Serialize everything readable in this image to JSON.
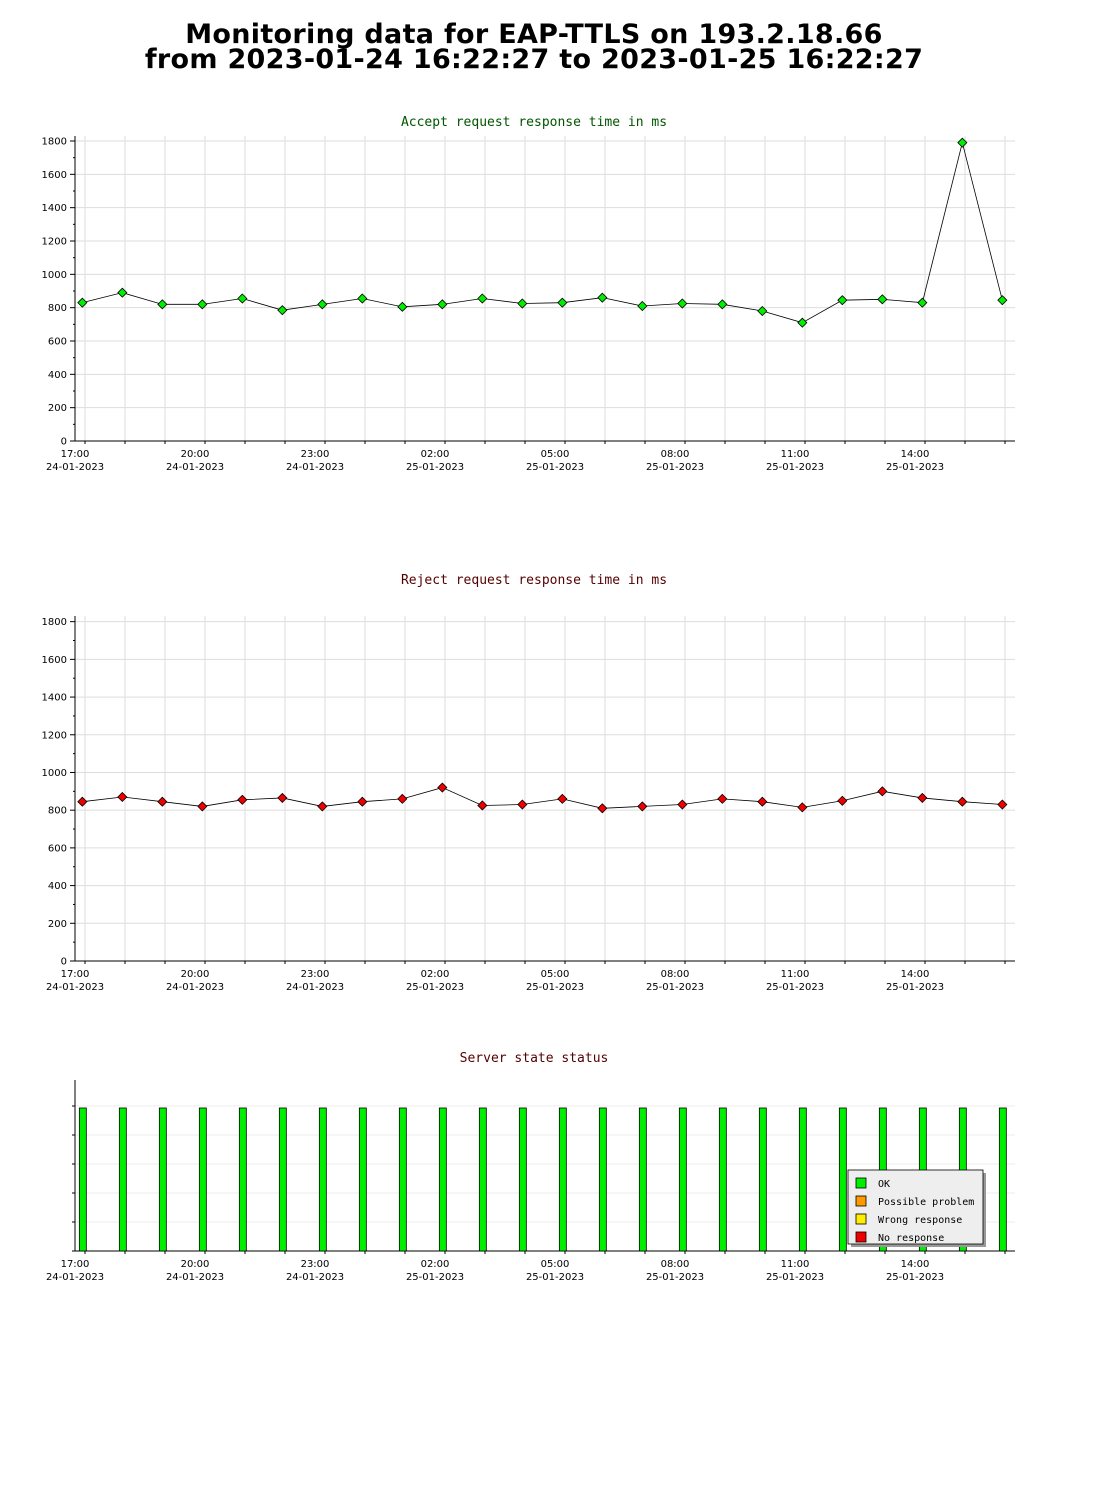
{
  "page": {
    "title_line1": "Monitoring data for EAP-TTLS on 193.2.18.66",
    "title_line2": "from 2023-01-24 16:22:27 to 2023-01-25 16:22:27"
  },
  "chart_data": [
    {
      "type": "line",
      "title": "Accept request response time in ms",
      "title_color": "#005500",
      "xlabel": "",
      "ylabel": "",
      "ylim": [
        0,
        1830
      ],
      "yticks": [
        0,
        200,
        400,
        600,
        800,
        1000,
        1200,
        1400,
        1600,
        1800
      ],
      "x_ticks": [
        {
          "time": "17:00",
          "date": "24-01-2023"
        },
        {
          "time": "20:00",
          "date": "24-01-2023"
        },
        {
          "time": "23:00",
          "date": "24-01-2023"
        },
        {
          "time": "02:00",
          "date": "25-01-2023"
        },
        {
          "time": "05:00",
          "date": "25-01-2023"
        },
        {
          "time": "08:00",
          "date": "25-01-2023"
        },
        {
          "time": "11:00",
          "date": "25-01-2023"
        },
        {
          "time": "14:00",
          "date": "25-01-2023"
        }
      ],
      "grid": true,
      "series": [
        {
          "color": "#00ee00",
          "x": [
            "2023-01-24 16:56",
            "2023-01-24 17:56",
            "2023-01-24 18:56",
            "2023-01-24 19:56",
            "2023-01-24 20:56",
            "2023-01-24 21:56",
            "2023-01-24 22:56",
            "2023-01-24 23:56",
            "2023-01-25 00:56",
            "2023-01-25 01:56",
            "2023-01-25 02:56",
            "2023-01-25 03:56",
            "2023-01-25 04:56",
            "2023-01-25 05:56",
            "2023-01-25 06:56",
            "2023-01-25 07:56",
            "2023-01-25 08:56",
            "2023-01-25 09:56",
            "2023-01-25 10:56",
            "2023-01-25 11:56",
            "2023-01-25 12:56",
            "2023-01-25 13:56",
            "2023-01-25 14:56",
            "2023-01-25 15:56"
          ],
          "values": [
            830,
            890,
            820,
            820,
            855,
            785,
            820,
            855,
            805,
            820,
            855,
            825,
            830,
            860,
            810,
            825,
            820,
            780,
            710,
            845,
            850,
            830,
            1790,
            845
          ]
        }
      ]
    },
    {
      "type": "line",
      "title": "Reject request response time in ms",
      "title_color": "#550000",
      "xlabel": "",
      "ylabel": "",
      "ylim": [
        0,
        1830
      ],
      "yticks": [
        0,
        200,
        400,
        600,
        800,
        1000,
        1200,
        1400,
        1600,
        1800
      ],
      "x_ticks": [
        {
          "time": "17:00",
          "date": "24-01-2023"
        },
        {
          "time": "20:00",
          "date": "24-01-2023"
        },
        {
          "time": "23:00",
          "date": "24-01-2023"
        },
        {
          "time": "02:00",
          "date": "25-01-2023"
        },
        {
          "time": "05:00",
          "date": "25-01-2023"
        },
        {
          "time": "08:00",
          "date": "25-01-2023"
        },
        {
          "time": "11:00",
          "date": "25-01-2023"
        },
        {
          "time": "14:00",
          "date": "25-01-2023"
        }
      ],
      "grid": true,
      "series": [
        {
          "color": "#ee0000",
          "x": [
            "2023-01-24 16:56",
            "2023-01-24 17:56",
            "2023-01-24 18:56",
            "2023-01-24 19:56",
            "2023-01-24 20:56",
            "2023-01-24 21:56",
            "2023-01-24 22:56",
            "2023-01-24 23:56",
            "2023-01-25 00:56",
            "2023-01-25 01:56",
            "2023-01-25 02:56",
            "2023-01-25 03:56",
            "2023-01-25 04:56",
            "2023-01-25 05:56",
            "2023-01-25 06:56",
            "2023-01-25 07:56",
            "2023-01-25 08:56",
            "2023-01-25 09:56",
            "2023-01-25 10:56",
            "2023-01-25 11:56",
            "2023-01-25 12:56",
            "2023-01-25 13:56",
            "2023-01-25 14:56",
            "2023-01-25 15:56"
          ],
          "values": [
            845,
            870,
            845,
            820,
            855,
            865,
            820,
            845,
            860,
            920,
            825,
            830,
            860,
            810,
            820,
            830,
            860,
            845,
            815,
            850,
            900,
            865,
            845,
            830
          ]
        }
      ]
    },
    {
      "type": "bar",
      "title": "Server state status",
      "title_color": "#550000",
      "xlabel": "",
      "ylabel": "",
      "x_ticks": [
        {
          "time": "17:00",
          "date": "24-01-2023"
        },
        {
          "time": "20:00",
          "date": "24-01-2023"
        },
        {
          "time": "23:00",
          "date": "24-01-2023"
        },
        {
          "time": "02:00",
          "date": "25-01-2023"
        },
        {
          "time": "05:00",
          "date": "25-01-2023"
        },
        {
          "time": "08:00",
          "date": "25-01-2023"
        },
        {
          "time": "11:00",
          "date": "25-01-2023"
        },
        {
          "time": "14:00",
          "date": "25-01-2023"
        }
      ],
      "x": [
        "2023-01-24 16:56",
        "2023-01-24 17:56",
        "2023-01-24 18:56",
        "2023-01-24 19:56",
        "2023-01-24 20:56",
        "2023-01-24 21:56",
        "2023-01-24 22:56",
        "2023-01-24 23:56",
        "2023-01-25 00:56",
        "2023-01-25 01:56",
        "2023-01-25 02:56",
        "2023-01-25 03:56",
        "2023-01-25 04:56",
        "2023-01-25 05:56",
        "2023-01-25 06:56",
        "2023-01-25 07:56",
        "2023-01-25 08:56",
        "2023-01-25 09:56",
        "2023-01-25 10:56",
        "2023-01-25 11:56",
        "2023-01-25 12:56",
        "2023-01-25 13:56",
        "2023-01-25 14:56",
        "2023-01-25 15:56"
      ],
      "states": [
        "OK",
        "OK",
        "OK",
        "OK",
        "OK",
        "OK",
        "OK",
        "OK",
        "OK",
        "OK",
        "OK",
        "OK",
        "OK",
        "OK",
        "OK",
        "OK",
        "OK",
        "OK",
        "OK",
        "OK",
        "OK",
        "OK",
        "OK",
        "OK"
      ],
      "legend_placement": "bottom-right",
      "legend": [
        {
          "label": "OK",
          "color": "#00ee00"
        },
        {
          "label": "Possible problem",
          "color": "#ff9900"
        },
        {
          "label": "Wrong response",
          "color": "#ffee00"
        },
        {
          "label": "No response",
          "color": "#ee0000"
        }
      ]
    }
  ]
}
